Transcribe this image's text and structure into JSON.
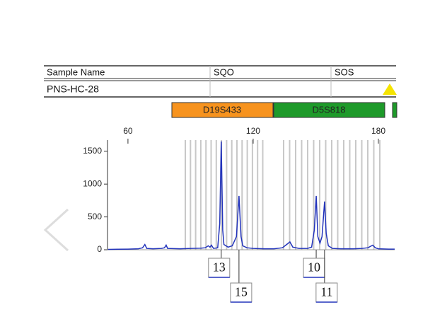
{
  "table": {
    "header": [
      "Sample Name",
      "SQO",
      "SOS"
    ],
    "rows": [
      [
        "PNS-HC-28"
      ]
    ]
  },
  "markers": [
    "D19S433",
    "D5S818"
  ],
  "chart_data": {
    "type": "line",
    "color": "#2233bb",
    "x": [
      50.5,
      55,
      60,
      65,
      67,
      68.1,
      69,
      72,
      76,
      77.5,
      78.3,
      79,
      85,
      90,
      95,
      97,
      98.5,
      99.3,
      100,
      101,
      103,
      104,
      104.7,
      105.4,
      106,
      108,
      110,
      112,
      113.2,
      114.2,
      115,
      117,
      120,
      125,
      130,
      134,
      136,
      137.6,
      139,
      142,
      146,
      148,
      149.3,
      150.2,
      151,
      152,
      153,
      154.2,
      155,
      156,
      158,
      162,
      168,
      172,
      175,
      177.3,
      178.5,
      180,
      185,
      187.8
    ],
    "values": [
      5,
      8,
      10,
      15,
      30,
      80,
      20,
      15,
      20,
      30,
      70,
      20,
      15,
      20,
      25,
      30,
      60,
      40,
      70,
      20,
      30,
      400,
      1650,
      300,
      80,
      40,
      60,
      200,
      820,
      200,
      60,
      30,
      20,
      15,
      15,
      30,
      80,
      120,
      40,
      20,
      20,
      40,
      300,
      820,
      200,
      100,
      200,
      735,
      250,
      60,
      20,
      15,
      15,
      20,
      30,
      70,
      30,
      15,
      10,
      10
    ],
    "xlim": [
      50.2,
      187.8
    ],
    "xticks": [
      60,
      120,
      180
    ],
    "ylim": [
      0,
      1670
    ],
    "yticks": [
      0,
      500,
      1000,
      1500
    ],
    "annotations": [
      {
        "text": "13",
        "x": 104.7
      },
      {
        "text": "15",
        "x": 113.2
      },
      {
        "text": "10",
        "x": 150.2
      },
      {
        "text": "11",
        "x": 154.2
      }
    ]
  }
}
